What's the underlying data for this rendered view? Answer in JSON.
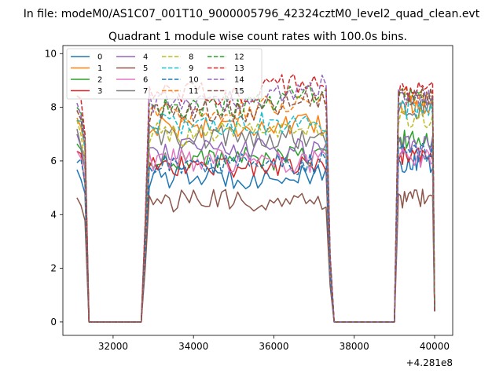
{
  "figure": {
    "suptitle": "In file: modeM0/AS1C07_001T10_9000005796_42324cztM0_level2_quad_clean.evt"
  },
  "chart_data": {
    "type": "line",
    "title": "Quadrant 1 module wise count rates with 100.0s bins.",
    "xlabel": "",
    "ylabel": "",
    "x_offset_label": "+4.281e8",
    "xlim": [
      30750,
      40450
    ],
    "ylim": [
      -0.5,
      10.3
    ],
    "xticks": [
      32000,
      34000,
      36000,
      38000,
      40000
    ],
    "xtick_labels": [
      "32000",
      "34000",
      "36000",
      "38000",
      "40000"
    ],
    "yticks": [
      0,
      2,
      4,
      6,
      8,
      10
    ],
    "ytick_labels": [
      "0",
      "2",
      "4",
      "6",
      "8",
      "10"
    ],
    "grid": false,
    "legend_placement": "top-left",
    "legend_columns": 4,
    "segments": [
      {
        "x_start": 31100,
        "x_end": 31400,
        "drop_to": 31400
      },
      {
        "x_start": 32700,
        "x_end": 37400,
        "rise_from": 32700
      },
      {
        "x_start": 39000,
        "x_end": 40000,
        "rise_from": 39000
      }
    ],
    "series": [
      {
        "name": "0",
        "color": "#1f77b4",
        "dash": "solid",
        "levels": [
          5.7,
          5.4,
          5.9
        ]
      },
      {
        "name": "1",
        "color": "#ff7f0e",
        "dash": "solid",
        "levels": [
          7.6,
          7.3,
          8.1
        ]
      },
      {
        "name": "2",
        "color": "#2ca02c",
        "dash": "solid",
        "levels": [
          6.6,
          6.1,
          6.8
        ]
      },
      {
        "name": "3",
        "color": "#d62728",
        "dash": "solid",
        "levels": [
          6.3,
          5.8,
          6.2
        ]
      },
      {
        "name": "4",
        "color": "#9467bd",
        "dash": "solid",
        "levels": [
          6.9,
          6.4,
          6.6
        ]
      },
      {
        "name": "5",
        "color": "#8c564b",
        "dash": "solid",
        "levels": [
          4.5,
          4.5,
          4.6
        ]
      },
      {
        "name": "6",
        "color": "#e377c2",
        "dash": "solid",
        "levels": [
          6.2,
          6.0,
          6.1
        ]
      },
      {
        "name": "7",
        "color": "#7f7f7f",
        "dash": "solid",
        "levels": [
          7.0,
          6.9,
          7.9
        ]
      },
      {
        "name": "8",
        "color": "#bcbd22",
        "dash": "dashed",
        "levels": [
          7.3,
          7.0,
          7.6
        ]
      },
      {
        "name": "9",
        "color": "#17becf",
        "dash": "dashed",
        "levels": [
          7.7,
          7.4,
          7.9
        ]
      },
      {
        "name": "10",
        "color": "#1f77b4",
        "dash": "dashed",
        "levels": [
          6.1,
          5.9,
          6.3
        ]
      },
      {
        "name": "11",
        "color": "#ff7f0e",
        "dash": "dashed",
        "levels": [
          8.0,
          7.8,
          8.4
        ]
      },
      {
        "name": "12",
        "color": "#2ca02c",
        "dash": "dashed",
        "levels": [
          8.1,
          8.0,
          8.4
        ]
      },
      {
        "name": "13",
        "color": "#d62728",
        "dash": "dashed",
        "levels": [
          8.5,
          8.5,
          8.6
        ]
      },
      {
        "name": "14",
        "color": "#9467bd",
        "dash": "dashed",
        "levels": [
          8.2,
          8.2,
          8.3
        ]
      },
      {
        "name": "15",
        "color": "#8c564b",
        "dash": "dashed",
        "levels": [
          7.9,
          7.8,
          8.4
        ]
      }
    ]
  }
}
